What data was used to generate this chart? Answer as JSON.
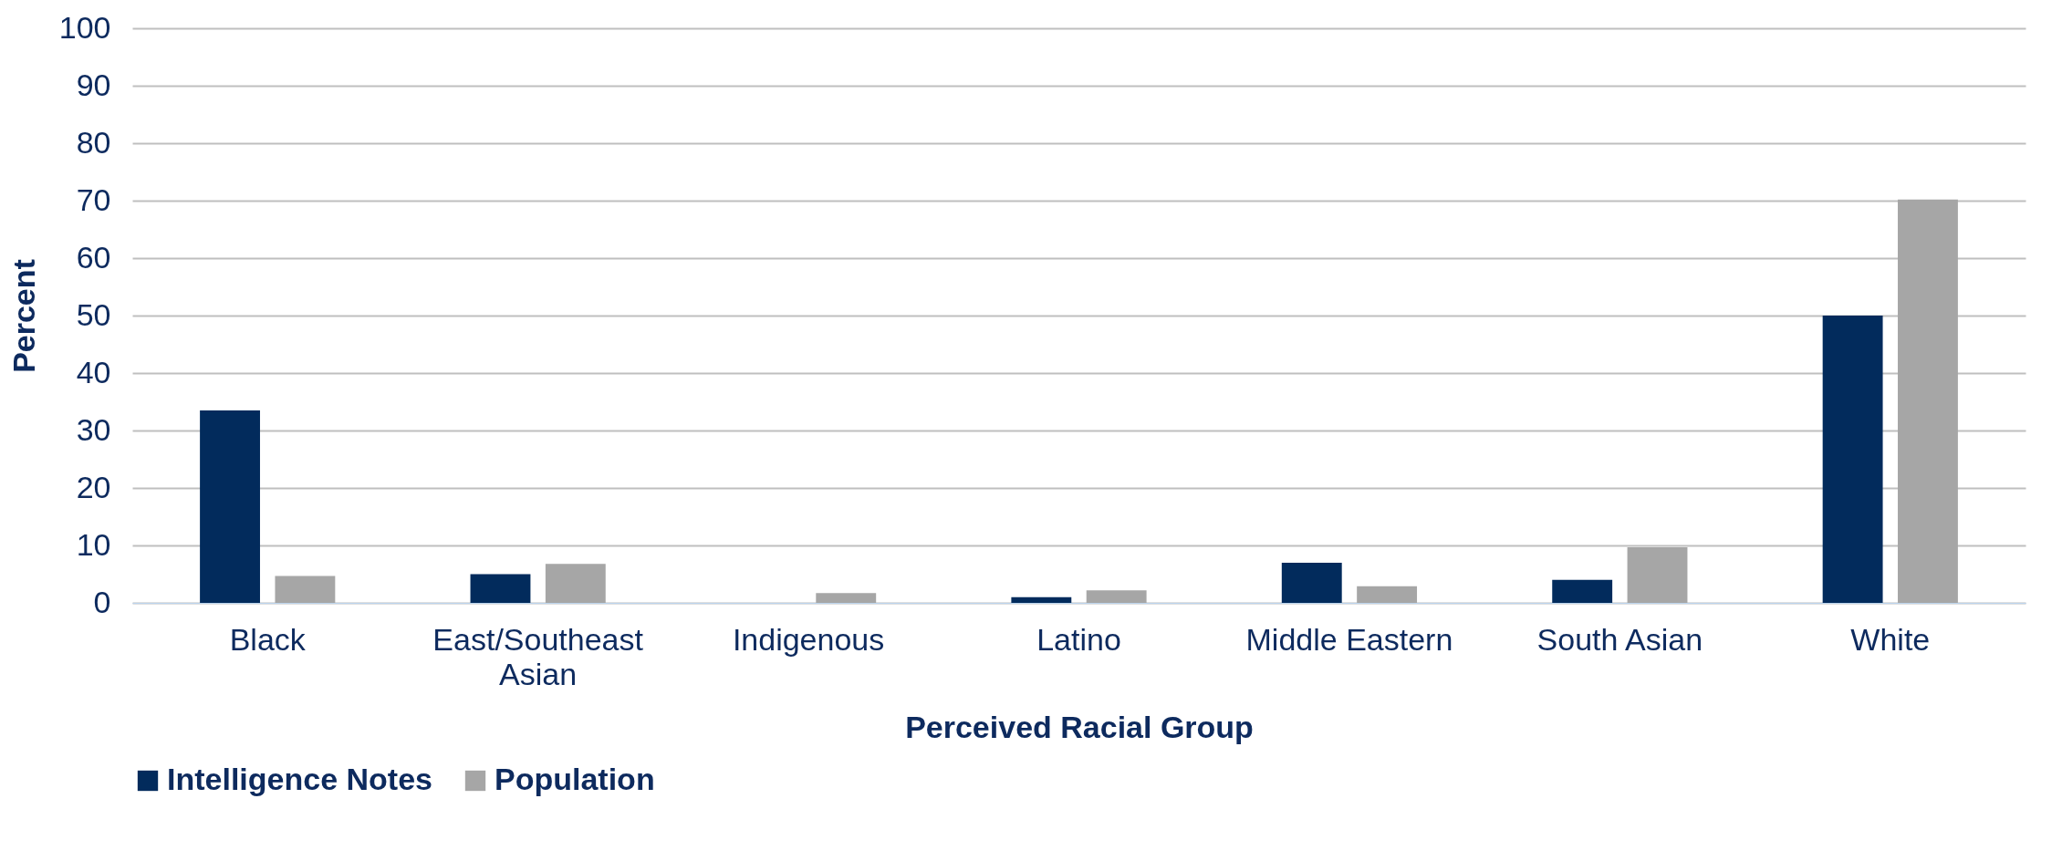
{
  "chart_data": {
    "type": "bar",
    "xlabel": "Perceived Racial Group",
    "ylabel": "Percent",
    "categories": [
      "Black",
      "East/Southeast Asian",
      "Indigenous",
      "Latino",
      "Middle Eastern",
      "South Asian",
      "White"
    ],
    "series": [
      {
        "name": "Intelligence Notes",
        "color": "#022b5c",
        "values": [
          33.5,
          5.0,
          0,
          1.0,
          7.0,
          4.0,
          50.0
        ]
      },
      {
        "name": "Population",
        "color": "#a6a6a6",
        "values": [
          4.7,
          6.8,
          1.7,
          2.2,
          2.9,
          9.7,
          70.2
        ]
      }
    ],
    "ylim": [
      0,
      100
    ],
    "yticks": [
      0,
      10,
      20,
      30,
      40,
      50,
      60,
      70,
      80,
      90,
      100
    ],
    "grid": "y",
    "legend": "bottom"
  }
}
